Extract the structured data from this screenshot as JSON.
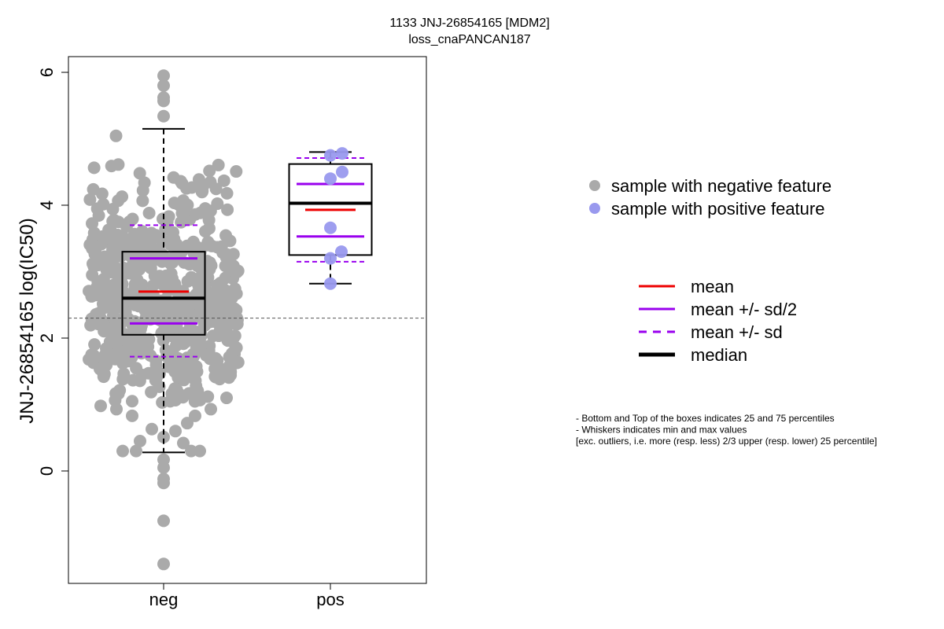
{
  "chart_data": {
    "type": "boxplot",
    "title": "1133 JNJ-26854165 [MDM2]",
    "subtitle": "loss_cnaPANCAN187",
    "ylabel": "JNJ-26854165 log(IC50)",
    "xlabel": "",
    "categories": [
      "neg",
      "pos"
    ],
    "ylim": [
      -1.7,
      6.2
    ],
    "yticks": [
      0,
      2,
      4,
      6
    ],
    "reference_line_y": 2.3,
    "groups": [
      {
        "name": "neg",
        "color": "#aaaaaa",
        "q1": 2.05,
        "median": 2.6,
        "q3": 3.3,
        "whisker_low": 0.28,
        "whisker_high": 5.15,
        "mean": 2.7,
        "mean_minus_half_sd": 2.22,
        "mean_plus_half_sd": 3.2,
        "mean_minus_sd": 1.72,
        "mean_plus_sd": 3.7,
        "outliers": [
          5.95,
          5.8,
          5.62,
          5.57,
          5.34,
          -0.18,
          -0.12,
          0.05,
          0.17,
          -0.75,
          -1.4
        ]
      },
      {
        "name": "pos",
        "color": "#9999ee",
        "q1": 3.25,
        "median": 4.03,
        "q3": 4.62,
        "whisker_low": 2.82,
        "whisker_high": 4.8,
        "mean": 3.93,
        "mean_minus_half_sd": 3.53,
        "mean_plus_half_sd": 4.32,
        "mean_minus_sd": 3.15,
        "mean_plus_sd": 4.71,
        "points": [
          4.78,
          4.75,
          4.5,
          4.4,
          3.66,
          3.3,
          3.2,
          2.82
        ]
      }
    ],
    "legend_points": [
      {
        "label": "sample with negative feature",
        "color": "#aaaaaa"
      },
      {
        "label": "sample with positive feature",
        "color": "#9999ee"
      }
    ],
    "legend_lines": [
      {
        "label": "mean",
        "color": "#ee0000",
        "style": "solid"
      },
      {
        "label": "mean +/- sd/2",
        "color": "#9900ee",
        "style": "solid"
      },
      {
        "label": "mean +/- sd",
        "color": "#9900ee",
        "style": "dashed"
      },
      {
        "label": "median",
        "color": "#000000",
        "style": "solid-thick"
      }
    ],
    "notes": [
      "- Bottom and Top of the boxes indicates 25 and 75 percentiles",
      "- Whiskers indicates min and max values",
      "[exc. outliers, i.e. more (resp. less) 2/3 upper (resp. lower) 25 percentile]"
    ]
  }
}
